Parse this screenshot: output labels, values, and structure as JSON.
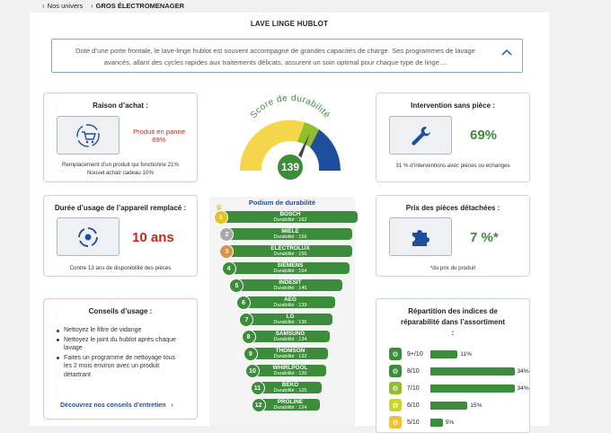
{
  "breadcrumb": {
    "back1": "Nos univers",
    "back2": "GROS ÉLECTROMENAGER"
  },
  "page": {
    "title": "LAVE LINGE HUBLOT",
    "description": "Doté d’une porte frontale, le lave-linge hublot est souvent accompagné de grandes capacités de charge. Ses programmes de lavage avancés, allant des cycles rapides aux traitements délicats, assurent un soin optimal pour chaque type de linge...."
  },
  "purchase": {
    "title": "Raison d’achat :",
    "main_label": "Produit en panne",
    "main_pct": "69%",
    "line1": "Remplacement d’un produit qui fonctionne 21%",
    "line2": "Nouvel achat/ cadeau 10%"
  },
  "score": {
    "title": "Score de durabilité",
    "value": "139"
  },
  "intervention": {
    "title": "Intervention sans pièce :",
    "value": "69%",
    "note": "31 % d’interventions avec pièces ou échanges"
  },
  "usage": {
    "title": "Durée d’usage de l’appareil remplacé :",
    "value": "10 ans",
    "note": "Contre 13 ans de disponibilité des pièces"
  },
  "parts": {
    "title": "Prix des pièces détachées :",
    "value": "7 %*",
    "note": "*du prix du produit"
  },
  "advice": {
    "title": "Conseils d’usage :",
    "items": [
      "Nettoyez le filtre de vidange",
      "Nettoyez le joint du hublot après chaque lavage",
      "Faites un programme de nettoyage tous les 2 mois environ avec un produit détartrant"
    ],
    "link": "Découvrez nos conseils d’entretien"
  },
  "podium": {
    "title": "Podium de durabilité",
    "rows": [
      {
        "rank": "1",
        "brand": "BOSCH",
        "score": "Durabilité : 162",
        "value": 162
      },
      {
        "rank": "2",
        "brand": "MIELE",
        "score": "Durabilité : 156",
        "value": 156
      },
      {
        "rank": "3",
        "brand": "ELECTROLUX",
        "score": "Durabilité : 156",
        "value": 156
      },
      {
        "rank": "4",
        "brand": "SIEMENS",
        "score": "Durabilité : 154",
        "value": 154
      },
      {
        "rank": "5",
        "brand": "INDESIT",
        "score": "Durabilité : 146",
        "value": 146
      },
      {
        "rank": "6",
        "brand": "AEG",
        "score": "Durabilité : 139",
        "value": 139
      },
      {
        "rank": "7",
        "brand": "LG",
        "score": "Durabilité : 136",
        "value": 136
      },
      {
        "rank": "8",
        "brand": "SAMSUNG",
        "score": "Durabilité : 134",
        "value": 134
      },
      {
        "rank": "9",
        "brand": "THOMSON",
        "score": "Durabilité : 132",
        "value": 132
      },
      {
        "rank": "10",
        "brand": "WHIRLPOOL",
        "score": "Durabilité : 130",
        "value": 130
      },
      {
        "rank": "11",
        "brand": "BEKO",
        "score": "Durabilité : 125",
        "value": 125
      },
      {
        "rank": "12",
        "brand": "PROLINE",
        "score": "Durabilité : 124",
        "value": 124
      }
    ]
  },
  "repair": {
    "title": "Répartition des indices de réparabilité dans l’assortiment :",
    "rows": [
      {
        "label": "9+/10",
        "pct": "11%",
        "value": 11,
        "color": "#3d8c3b"
      },
      {
        "label": "8/10",
        "pct": "34%",
        "value": 34,
        "color": "#3d8c3b"
      },
      {
        "label": "7/10",
        "pct": "34%",
        "value": 34,
        "color": "#8fbf2e"
      },
      {
        "label": "6/10",
        "pct": "15%",
        "value": 15,
        "color": "#c8d62a"
      },
      {
        "label": "5/10",
        "pct": "5%",
        "value": 5,
        "color": "#f2c12e"
      }
    ]
  },
  "colors": {
    "accent": "#1e4f9e",
    "green": "#3d8c3b",
    "red": "#c8281e",
    "yellow": "#f4d64a"
  }
}
